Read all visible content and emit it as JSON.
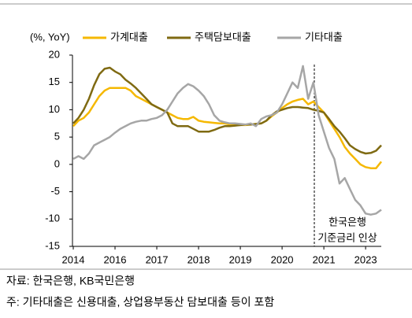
{
  "chart_data": {
    "type": "line",
    "unit_label": "(%, YoY)",
    "categories": [
      "2014",
      null,
      null,
      null,
      null,
      null,
      null,
      null,
      "2016",
      null,
      null,
      null,
      null,
      null,
      null,
      null,
      "2017",
      null,
      null,
      null,
      null,
      null,
      null,
      null,
      "2018",
      null,
      null,
      null,
      null,
      null,
      null,
      null,
      "2019",
      null,
      null,
      null,
      null,
      null,
      null,
      null,
      "2020",
      null,
      null,
      null,
      null,
      null,
      null,
      null,
      "2021",
      null,
      null,
      null,
      null,
      null,
      null,
      null,
      "2023",
      null,
      null,
      null
    ],
    "series": [
      {
        "name": "가계대출",
        "color": "#f5b800",
        "values": [
          7,
          8,
          8.5,
          9.5,
          11,
          12.5,
          13.5,
          14,
          14,
          14,
          14,
          13.5,
          12.5,
          12,
          11.5,
          11,
          10.5,
          10,
          9.5,
          9,
          8.5,
          8.3,
          8.3,
          8.7,
          8,
          7.8,
          7.7,
          7.6,
          7.5,
          7.5,
          7.3,
          7.2,
          7.2,
          7.2,
          7.3,
          7.4,
          7.5,
          8,
          8.8,
          9.5,
          10.3,
          11,
          11.5,
          11.8,
          12,
          11,
          11.5,
          10.5,
          9.5,
          8,
          6.5,
          5,
          3.2,
          2,
          1,
          0,
          -0.5,
          -0.7,
          -0.7,
          0.5
        ]
      },
      {
        "name": "주택담보대출",
        "color": "#7f6a12",
        "values": [
          7.5,
          8.5,
          10,
          12,
          14.5,
          16.5,
          17.5,
          17.7,
          17,
          16.5,
          15.5,
          14.8,
          14,
          13,
          12,
          11,
          10.5,
          10,
          9.5,
          7.5,
          7,
          7,
          7,
          6.5,
          6,
          6,
          6,
          6.3,
          6.7,
          7,
          7,
          7.1,
          7.2,
          7.3,
          7.3,
          7.4,
          7.5,
          8,
          9,
          9.7,
          10,
          10.3,
          10.5,
          10.5,
          10.4,
          10.3,
          10,
          9.8,
          9.5,
          8.3,
          7,
          6,
          4.8,
          3.5,
          2.8,
          2.3,
          2,
          2.1,
          2.5,
          3.5
        ]
      },
      {
        "name": "기타대출",
        "color": "#a6a6a6",
        "values": [
          1,
          1.5,
          1,
          2,
          3.5,
          4,
          4.5,
          5,
          5.8,
          6.5,
          7,
          7.5,
          7.8,
          8,
          8,
          8.3,
          8.5,
          9,
          10,
          11.5,
          13,
          14,
          14.7,
          14.3,
          13.5,
          12.5,
          11,
          9,
          8,
          7.7,
          7.5,
          7.5,
          7.4,
          7.3,
          7.5,
          7,
          8.3,
          8.8,
          9,
          9.5,
          11,
          13,
          15,
          14,
          18,
          12,
          15,
          9,
          6,
          3,
          1,
          -3.5,
          -2.5,
          -4.5,
          -6.5,
          -7.5,
          -9,
          -9.2,
          -9,
          -8.3
        ]
      }
    ],
    "ylim": [
      -15,
      20
    ],
    "yticks": [
      -15,
      -10,
      -5,
      0,
      5,
      10,
      15,
      20
    ],
    "annotation": [
      "한국은행",
      "기준금리 인상"
    ],
    "source": "자료: 한국은행, KB국민은행",
    "note": "주: 기타대출은 신용대출, 상업용부동산 담보대출 등이 포함"
  }
}
